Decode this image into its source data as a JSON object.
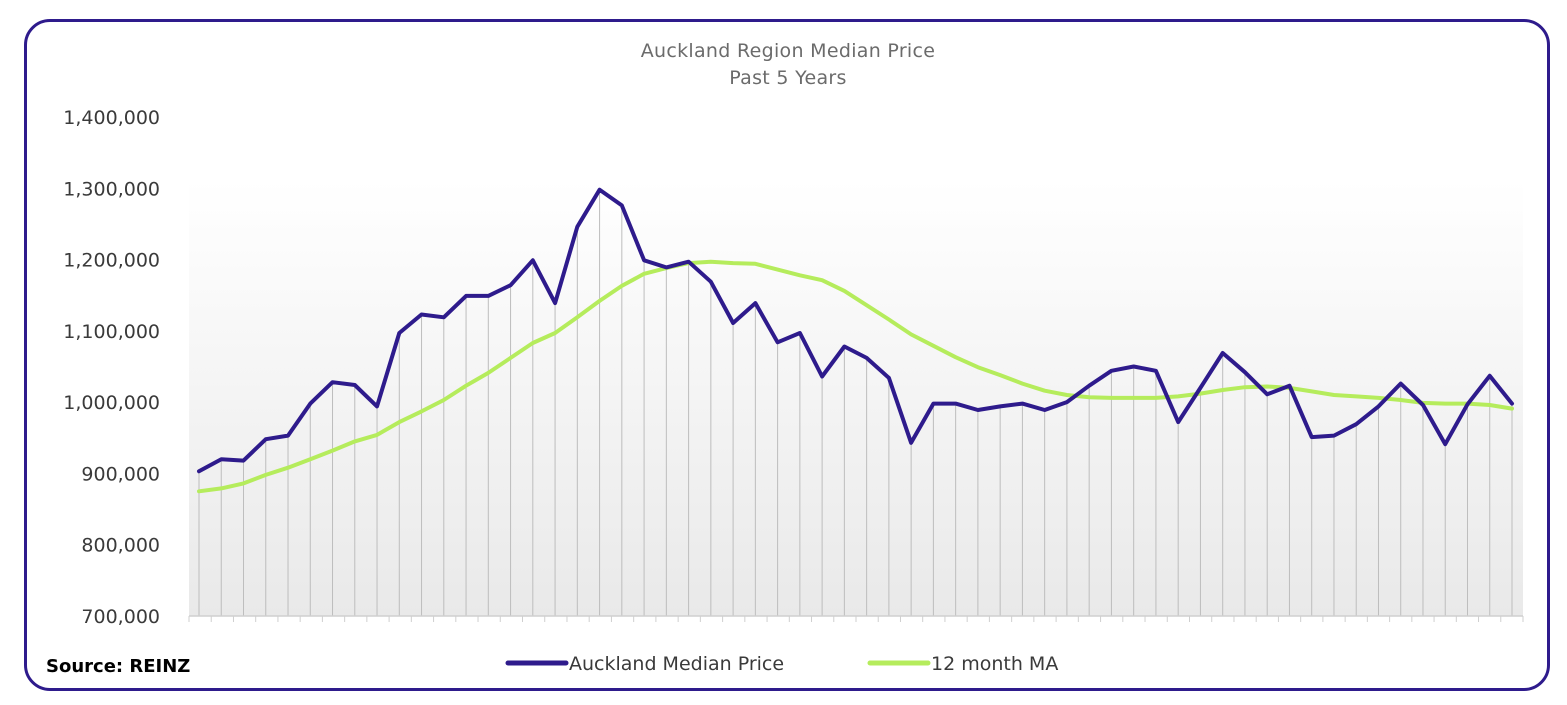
{
  "chart_data": {
    "type": "line",
    "title": "Auckland Region Median Price",
    "subtitle": "Past 5 Years",
    "xlabel": "",
    "ylabel": "",
    "ylim": [
      700000,
      1400000
    ],
    "yticks": [
      700000,
      800000,
      900000,
      1000000,
      1100000,
      1200000,
      1300000,
      1400000
    ],
    "ytick_labels": [
      "700,000",
      "800,000",
      "900,000",
      "1,000,000",
      "1,100,000",
      "1,200,000",
      "1,300,000",
      "1,400,000"
    ],
    "grid": "vertical drop lines per month",
    "legend_position": "bottom-center",
    "source": "Source: REINZ",
    "colors": {
      "median": "#2e1b8c",
      "ma": "#b5ec5c",
      "frame": "#2e1b8c",
      "droplines": "#bdbdbd"
    },
    "series": [
      {
        "name": "Auckland Median Price",
        "values": [
          903000,
          920000,
          918000,
          948000,
          953000,
          998000,
          1028000,
          1024000,
          994000,
          1097000,
          1123000,
          1119000,
          1149000,
          1149000,
          1164000,
          1199000,
          1139000,
          1246000,
          1298000,
          1276000,
          1199000,
          1189000,
          1197000,
          1169000,
          1111000,
          1139000,
          1084000,
          1097000,
          1036000,
          1078000,
          1062000,
          1034000,
          943000,
          998000,
          998000,
          989000,
          994000,
          998000,
          989000,
          1000000,
          1023000,
          1044000,
          1050000,
          1044000,
          972000,
          1020000,
          1069000,
          1042000,
          1011000,
          1023000,
          951000,
          953000,
          969000,
          994000,
          1026000,
          996000,
          941000,
          997000,
          1037000,
          998000
        ]
      },
      {
        "name": "12 month MA",
        "values": [
          875000,
          879000,
          886000,
          898000,
          908000,
          920000,
          932000,
          945000,
          954000,
          972000,
          987000,
          1003000,
          1023000,
          1041000,
          1062000,
          1083000,
          1097000,
          1119000,
          1142000,
          1163000,
          1180000,
          1188000,
          1195000,
          1197000,
          1195000,
          1194000,
          1186000,
          1178000,
          1171000,
          1156000,
          1136000,
          1116000,
          1095000,
          1079000,
          1063000,
          1049000,
          1038000,
          1026000,
          1016000,
          1010000,
          1007000,
          1006000,
          1006000,
          1006000,
          1008000,
          1012000,
          1017000,
          1021000,
          1022000,
          1020000,
          1015000,
          1010000,
          1008000,
          1006000,
          1003000,
          999000,
          998000,
          998000,
          996000,
          991000
        ]
      }
    ]
  }
}
